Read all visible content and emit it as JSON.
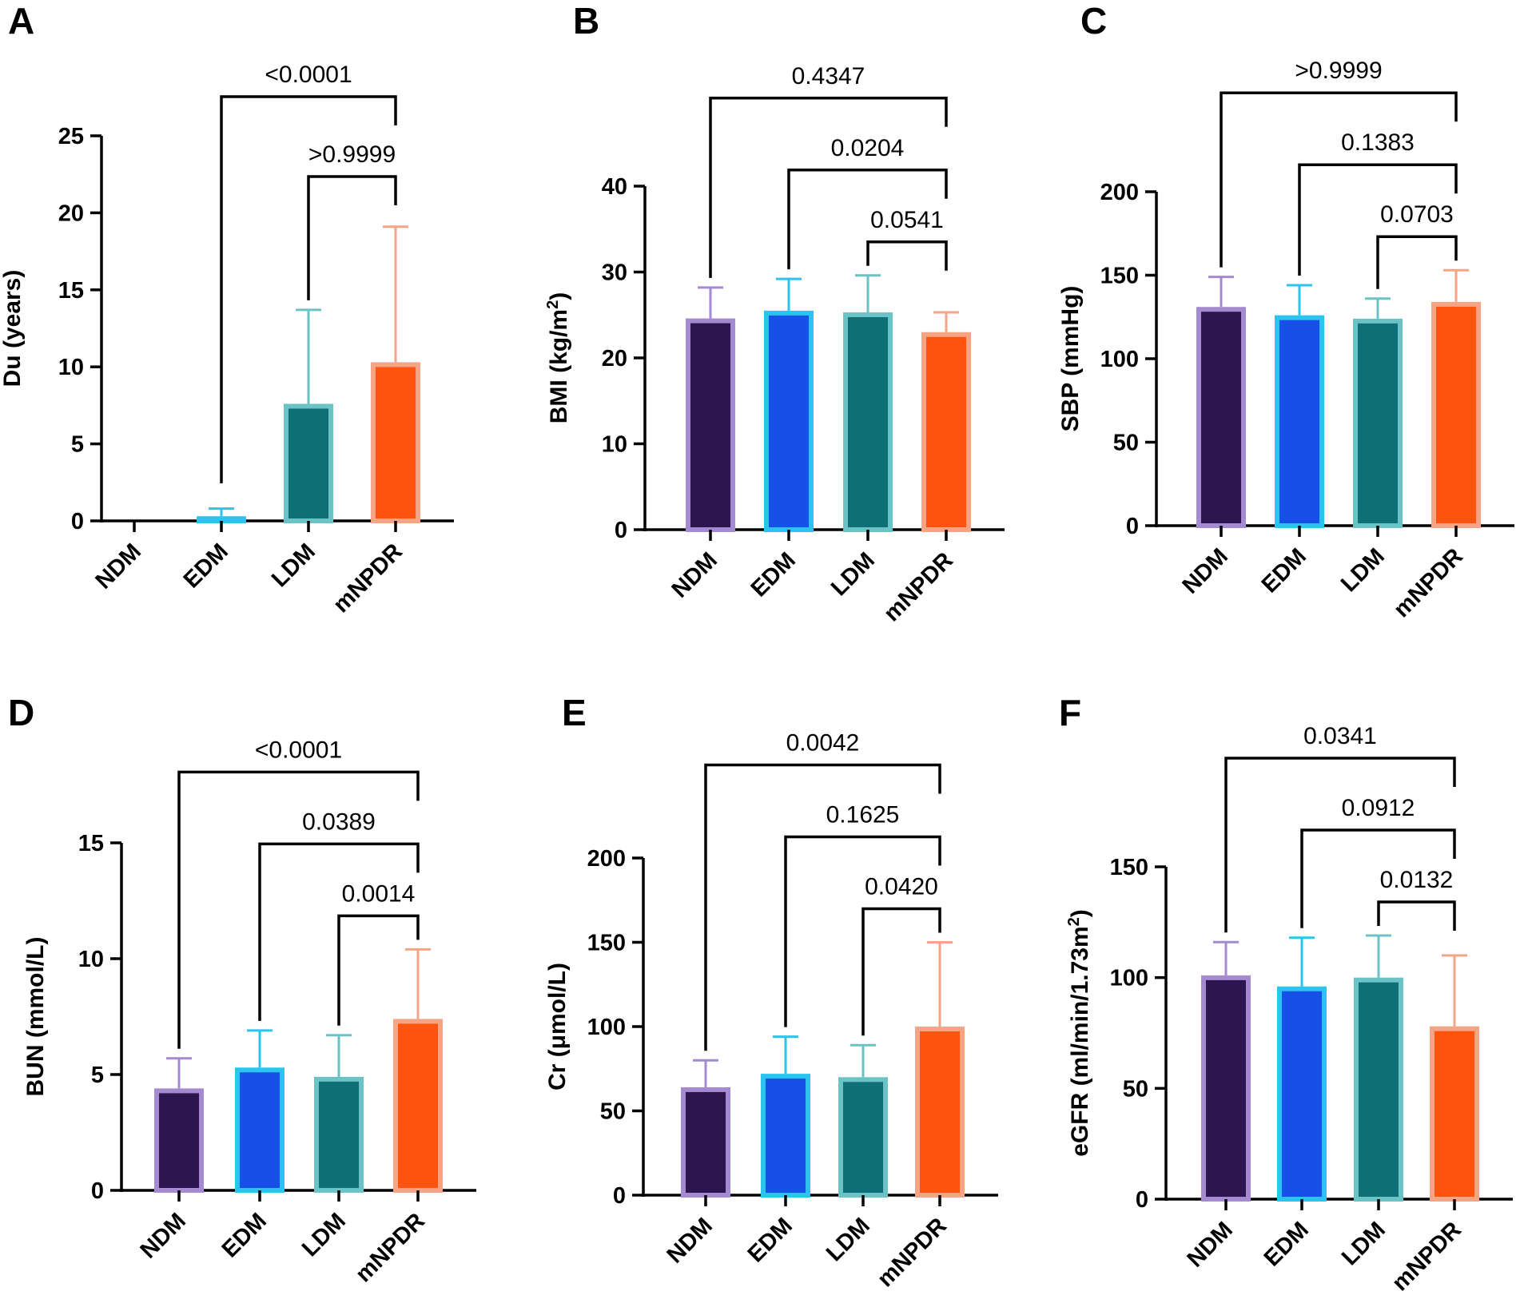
{
  "figure": {
    "series_colors": {
      "NDM": {
        "fill": "#2d1650",
        "edge": "#a48ad0",
        "err": "#a48ad0"
      },
      "EDM": {
        "fill": "#1750e6",
        "edge": "#2bc4ef",
        "err": "#2bc4ef"
      },
      "LDM": {
        "fill": "#0f6f76",
        "edge": "#6cc3c6",
        "err": "#6cc3c6"
      },
      "mNPDR": {
        "fill": "#ff540f",
        "edge": "#f5a585",
        "err": "#f5a585"
      }
    }
  },
  "chart_data": [
    {
      "panel": "A",
      "type": "bar",
      "title": "",
      "ylabel": "Du (years)",
      "ylabel_sup": "",
      "ylabel_after": "",
      "categories": [
        "NDM",
        "EDM",
        "LDM",
        "mNPDR"
      ],
      "values": [
        0,
        0.3,
        7.6,
        10.3
      ],
      "errors": [
        0,
        0.5,
        6.1,
        8.8
      ],
      "ylim": [
        0,
        25
      ],
      "yticks": [
        0,
        5,
        10,
        15,
        20,
        25
      ],
      "comparisons": [
        {
          "from": 1,
          "to": 3,
          "p": "<0.0001"
        },
        {
          "from": 2,
          "to": 3,
          "p": ">0.9999"
        }
      ]
    },
    {
      "panel": "B",
      "type": "bar",
      "title": "",
      "ylabel": "BMI (kg/m",
      "ylabel_sup": "2",
      "ylabel_after": ")",
      "categories": [
        "NDM",
        "EDM",
        "LDM",
        "mNPDR"
      ],
      "values": [
        24.6,
        25.5,
        25.3,
        23.0
      ],
      "errors": [
        3.6,
        3.7,
        4.3,
        2.3
      ],
      "ylim": [
        0,
        40
      ],
      "yticks": [
        0,
        10,
        20,
        30,
        40
      ],
      "comparisons": [
        {
          "from": 0,
          "to": 3,
          "p": "0.4347"
        },
        {
          "from": 1,
          "to": 3,
          "p": "0.0204"
        },
        {
          "from": 2,
          "to": 3,
          "p": "0.0541"
        }
      ]
    },
    {
      "panel": "C",
      "type": "bar",
      "title": "",
      "ylabel": "SBP (mmHg)",
      "ylabel_sup": "",
      "ylabel_after": "",
      "categories": [
        "NDM",
        "EDM",
        "LDM",
        "mNPDR"
      ],
      "values": [
        131,
        126,
        124,
        134
      ],
      "errors": [
        18,
        18,
        12,
        19
      ],
      "ylim": [
        0,
        200
      ],
      "yticks": [
        0,
        50,
        100,
        150,
        200
      ],
      "comparisons": [
        {
          "from": 0,
          "to": 3,
          "p": ">0.9999"
        },
        {
          "from": 1,
          "to": 3,
          "p": "0.1383"
        },
        {
          "from": 2,
          "to": 3,
          "p": "0.0703"
        }
      ]
    },
    {
      "panel": "D",
      "type": "bar",
      "title": "",
      "ylabel": "BUN  (mmol/L)",
      "ylabel_sup": "",
      "ylabel_after": "",
      "categories": [
        "NDM",
        "EDM",
        "LDM",
        "mNPDR"
      ],
      "values": [
        4.4,
        5.3,
        4.9,
        7.4
      ],
      "errors": [
        1.3,
        1.6,
        1.8,
        3.0
      ],
      "ylim": [
        0,
        15
      ],
      "yticks": [
        0,
        5,
        10,
        15
      ],
      "comparisons": [
        {
          "from": 0,
          "to": 3,
          "p": "<0.0001"
        },
        {
          "from": 1,
          "to": 3,
          "p": "0.0389"
        },
        {
          "from": 2,
          "to": 3,
          "p": "0.0014"
        }
      ]
    },
    {
      "panel": "E",
      "type": "bar",
      "title": "",
      "ylabel": "Cr (μmol/L)",
      "ylabel_sup": "",
      "ylabel_after": "",
      "categories": [
        "NDM",
        "EDM",
        "LDM",
        "mNPDR"
      ],
      "values": [
        64,
        72,
        70,
        100
      ],
      "errors": [
        16,
        22,
        19,
        50
      ],
      "ylim": [
        0,
        200
      ],
      "yticks": [
        0,
        50,
        100,
        150,
        200
      ],
      "comparisons": [
        {
          "from": 0,
          "to": 3,
          "p": "0.0042"
        },
        {
          "from": 1,
          "to": 3,
          "p": "0.1625"
        },
        {
          "from": 2,
          "to": 3,
          "p": "0.0420"
        }
      ]
    },
    {
      "panel": "F",
      "type": "bar",
      "title": "",
      "ylabel": "eGFR (ml/min/1.73m",
      "ylabel_sup": "2",
      "ylabel_after": ")",
      "categories": [
        "NDM",
        "EDM",
        "LDM",
        "mNPDR"
      ],
      "values": [
        101,
        96,
        100,
        78
      ],
      "errors": [
        15,
        22,
        19,
        32
      ],
      "ylim": [
        0,
        150
      ],
      "yticks": [
        0,
        50,
        100,
        150
      ],
      "comparisons": [
        {
          "from": 0,
          "to": 3,
          "p": "0.0341"
        },
        {
          "from": 1,
          "to": 3,
          "p": "0.0912"
        },
        {
          "from": 2,
          "to": 3,
          "p": "0.0132"
        }
      ]
    }
  ]
}
